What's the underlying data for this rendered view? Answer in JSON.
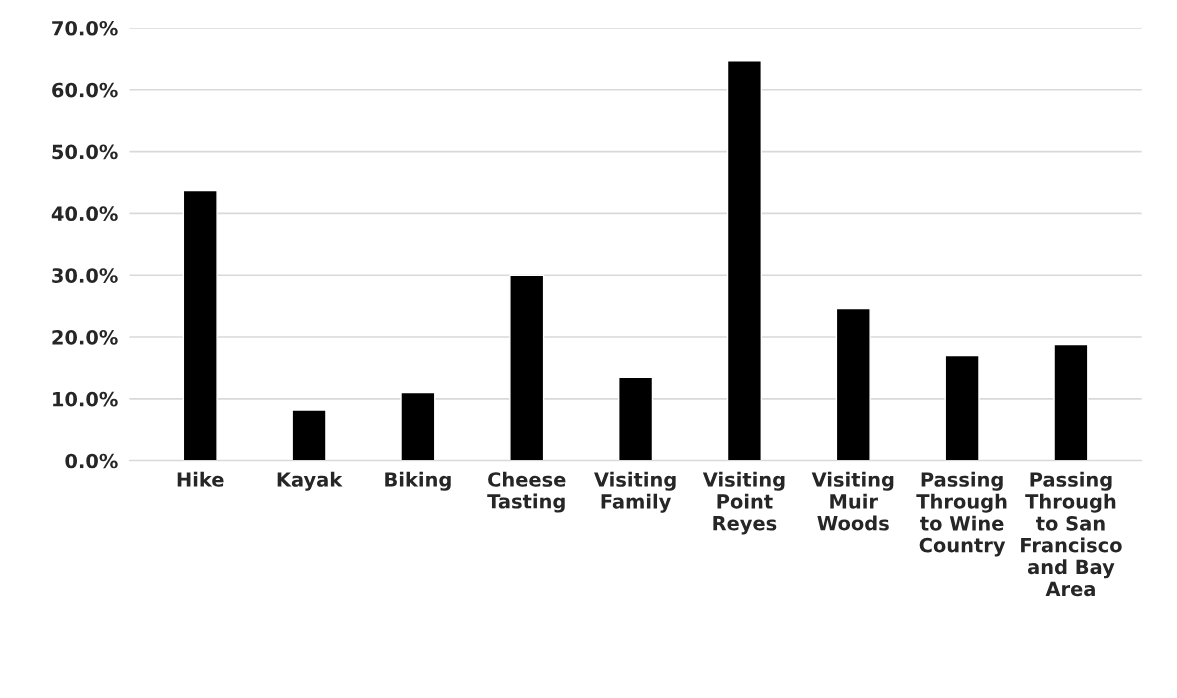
{
  "chart_data": {
    "type": "bar",
    "categories": [
      "Hike",
      "Kayak",
      "Biking",
      "Cheese\nTasting",
      "Visiting\nFamily",
      "Visiting\nPoint\nReyes",
      "Visiting\nMuir\nWoods",
      "Passing\nThrough\nto Wine\nCountry",
      "Passing\nThrough\nto San\nFrancisco\nand Bay\nArea"
    ],
    "values": [
      43.7,
      8.2,
      11.0,
      30.0,
      13.5,
      64.7,
      24.6,
      17.0,
      18.8
    ],
    "color": "#000000",
    "ylim": [
      0,
      70
    ],
    "yticks": [
      {
        "value": 0,
        "label": "0.0%"
      },
      {
        "value": 10,
        "label": "10.0%"
      },
      {
        "value": 20,
        "label": "20.0%"
      },
      {
        "value": 30,
        "label": "30.0%"
      },
      {
        "value": 40,
        "label": "40.0%"
      },
      {
        "value": 50,
        "label": "50.0%"
      },
      {
        "value": 60,
        "label": "60.0%"
      },
      {
        "value": 70,
        "label": "70.0%"
      }
    ],
    "grid": "y"
  }
}
